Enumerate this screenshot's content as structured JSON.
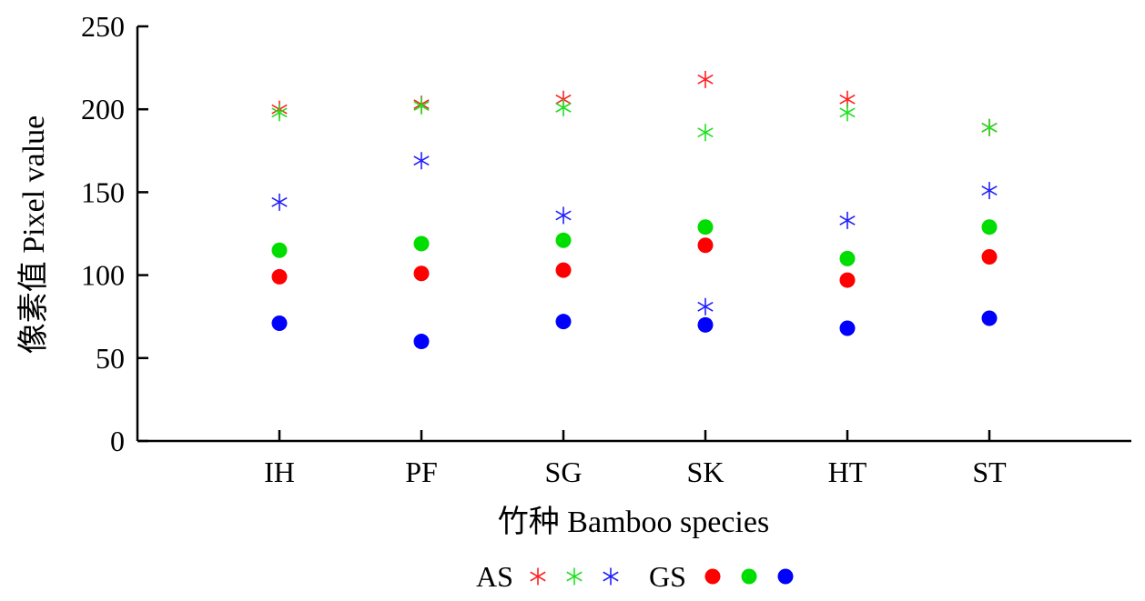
{
  "chart_data": {
    "type": "scatter",
    "title": "",
    "xlabel": "竹种  Bamboo species",
    "ylabel": "像素值  Pixel value",
    "ylim": [
      0,
      250
    ],
    "yticks": [
      0,
      50,
      100,
      150,
      200,
      250
    ],
    "categories": [
      "IH",
      "PF",
      "SG",
      "SK",
      "HT",
      "ST"
    ],
    "grid": false,
    "legend_position": "bottom",
    "legend": {
      "groups": [
        {
          "label": "AS",
          "marker": "asterisk",
          "colors": [
            "#ff2020",
            "#20e020",
            "#2020ff"
          ]
        },
        {
          "label": "GS",
          "marker": "circle",
          "colors": [
            "#ff0000",
            "#00dd00",
            "#0000ff"
          ]
        }
      ]
    },
    "series": [
      {
        "group": "AS",
        "channel": "R",
        "marker": "asterisk",
        "color": "#ff2020",
        "values": [
          200,
          203,
          206,
          218,
          206,
          189
        ]
      },
      {
        "group": "AS",
        "channel": "G",
        "marker": "asterisk",
        "color": "#20e020",
        "values": [
          198,
          202,
          201,
          186,
          198,
          189
        ]
      },
      {
        "group": "AS",
        "channel": "B",
        "marker": "asterisk",
        "color": "#2020ff",
        "values": [
          144,
          169,
          136,
          81,
          133,
          151
        ]
      },
      {
        "group": "GS",
        "channel": "R",
        "marker": "circle",
        "color": "#ff0000",
        "values": [
          99,
          101,
          103,
          118,
          97,
          111
        ]
      },
      {
        "group": "GS",
        "channel": "G",
        "marker": "circle",
        "color": "#00dd00",
        "values": [
          115,
          119,
          121,
          129,
          110,
          129
        ]
      },
      {
        "group": "GS",
        "channel": "B",
        "marker": "circle",
        "color": "#0000ff",
        "values": [
          71,
          60,
          72,
          70,
          68,
          74
        ]
      }
    ]
  }
}
